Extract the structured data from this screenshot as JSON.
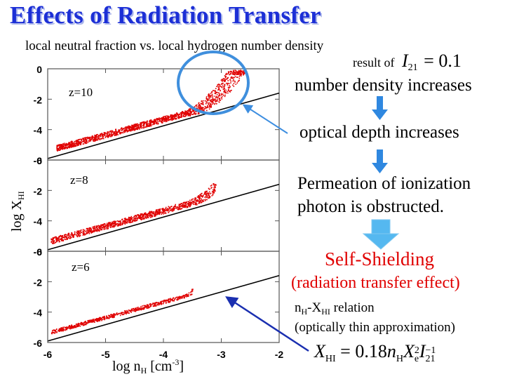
{
  "title": "Effects of Radiation Transfer",
  "subtitle": "local neutral fraction vs. local hydrogen number density",
  "result_prefix": "result of",
  "result_formula_symbol": "I",
  "result_formula_sub": "21",
  "result_formula_rhs": "= 0.1",
  "steps": [
    "number density increases",
    "optical depth increases",
    "Permeation of ionization",
    "photon is obstructed."
  ],
  "self_shielding": "Self-Shielding",
  "rt_effect": "(radiation transfer effect)",
  "relation_label": {
    "n": "n",
    "n_sub": "H",
    "dash": "-",
    "x": "X",
    "x_sub": "HI",
    "tail": " relation"
  },
  "thin_approx": "(optically thin approximation)",
  "formula": {
    "lhs": "X",
    "lhs_sub": "HI",
    "eq": " = 0.18",
    "n": "n",
    "n_sub": "H",
    "x": "X",
    "x_sub": "e",
    "x_sup": "2",
    "i": "I",
    "i_sub": "21",
    "i_sup": "−1"
  },
  "colors": {
    "title": "#1c2fd6",
    "points": "#e00000",
    "arrow_light": "#3d8ee0",
    "arrow_dark": "#1a2fb0",
    "circle": "#3f8fdd",
    "red_text": "#e00000",
    "fat_arrow": "#55b8f0"
  },
  "chart_data": {
    "type": "scatter",
    "xlabel": "log n",
    "xlabel_sub": "H",
    "xlabel_unit": " [cm",
    "xlabel_sup": "-3",
    "xlabel_close": "]",
    "ylabel": "log X",
    "ylabel_sub": "HI",
    "xlim": [
      -6,
      -2
    ],
    "ylim": [
      -6,
      0
    ],
    "xticks": [
      "-6",
      "-5",
      "-4",
      "-3",
      "-2"
    ],
    "yticks": [
      "0",
      "-2",
      "-4",
      "-6"
    ],
    "reference_line": {
      "label": "optically thin approximation",
      "x": [
        -6,
        -2
      ],
      "y": [
        -5.9,
        -1.6
      ]
    },
    "panels": [
      {
        "label": "z=10",
        "point_range_x": [
          -5.85,
          -2.6
        ],
        "spread_max": 2.4,
        "upturn_start": -3.6
      },
      {
        "label": "z=8",
        "point_range_x": [
          -5.95,
          -3.1
        ],
        "spread_max": 0.6,
        "upturn_start": -3.6
      },
      {
        "label": "z=6",
        "point_range_x": [
          -5.95,
          -3.5
        ],
        "spread_max": 0.2,
        "upturn_start": -3.6
      }
    ]
  }
}
